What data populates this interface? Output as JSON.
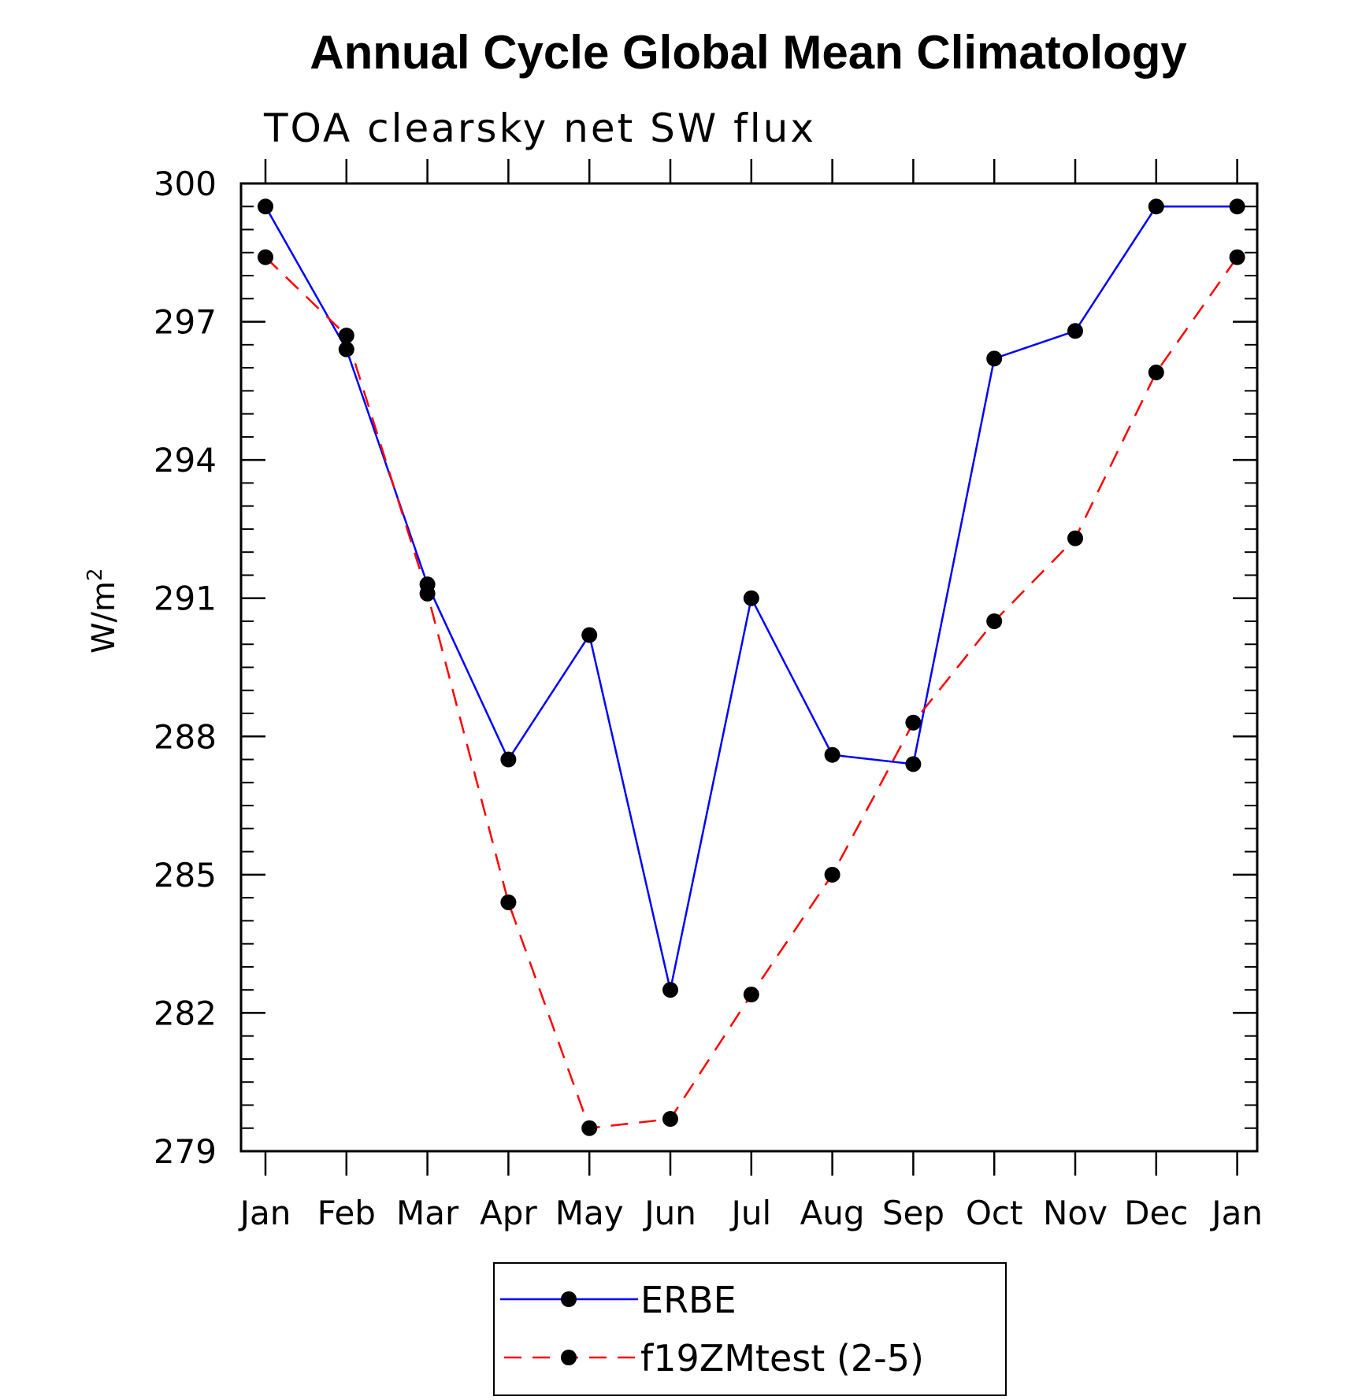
{
  "chart_data": {
    "type": "line",
    "title": "Annual Cycle Global Mean Climatology",
    "subtitle": "TOA clearsky net SW flux",
    "ylabel_main": "W/m",
    "ylabel_sup": "2",
    "categories": [
      "Jan",
      "Feb",
      "Mar",
      "Apr",
      "May",
      "Jun",
      "Jul",
      "Aug",
      "Sep",
      "Oct",
      "Nov",
      "Dec",
      "Jan"
    ],
    "yticks": [
      279,
      282,
      285,
      288,
      291,
      294,
      297,
      300
    ],
    "ylim": [
      279,
      300
    ],
    "series": [
      {
        "name": "ERBE",
        "color": "#0000ff",
        "dash": "solid",
        "values": [
          299.5,
          296.4,
          291.3,
          287.5,
          290.2,
          282.5,
          291.0,
          287.6,
          287.4,
          296.2,
          296.8,
          299.5,
          299.5
        ]
      },
      {
        "name": "f19ZMtest (2-5)",
        "color": "#ff0000",
        "dash": "dashed",
        "values": [
          298.4,
          296.7,
          291.1,
          284.4,
          279.5,
          279.7,
          282.4,
          285.0,
          288.3,
          290.5,
          292.3,
          295.9,
          298.4
        ]
      }
    ]
  }
}
